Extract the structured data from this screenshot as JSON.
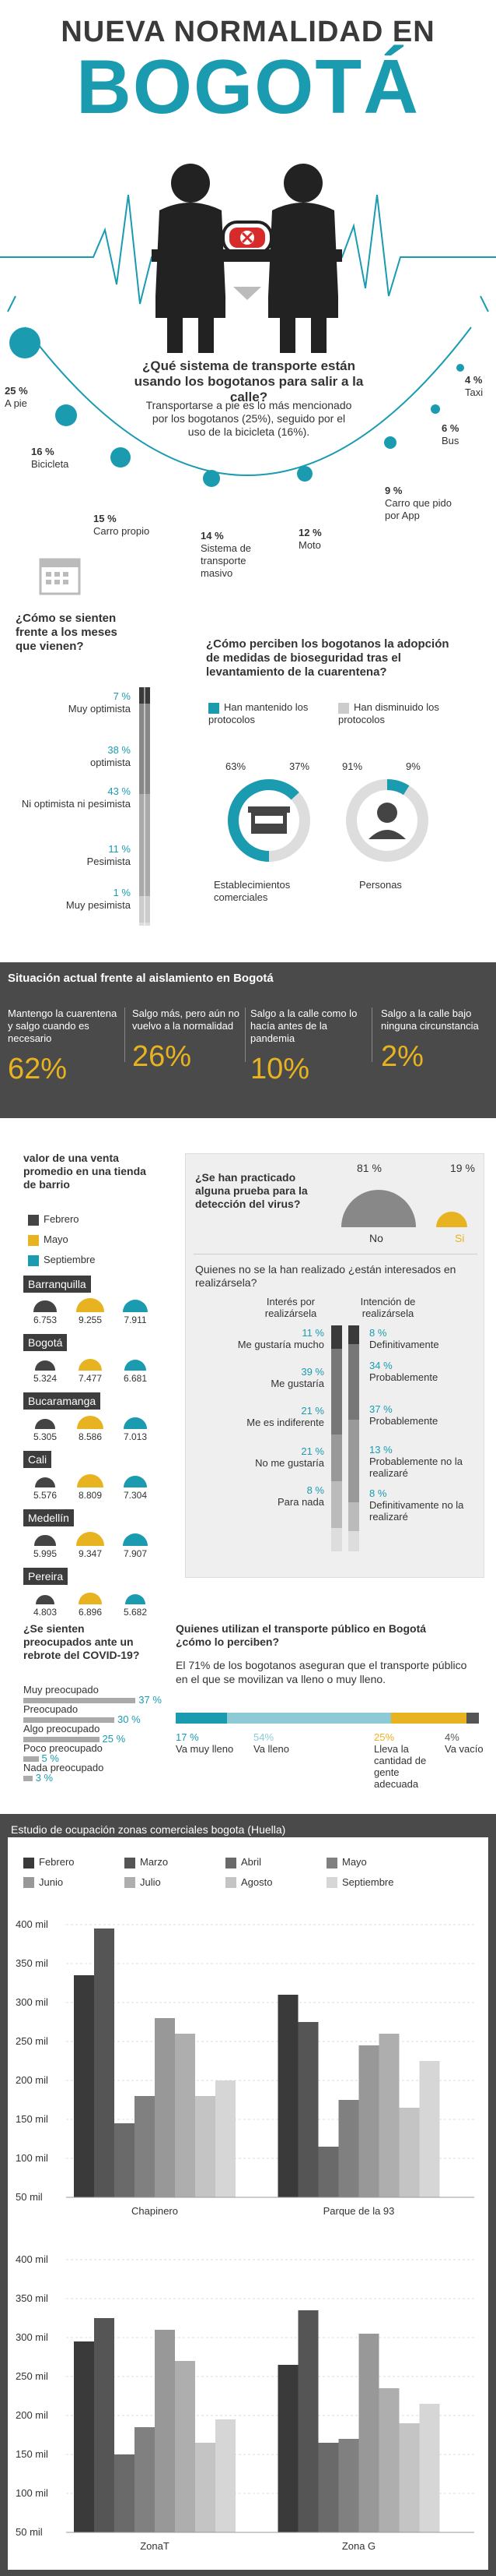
{
  "header": {
    "line1": "NUEVA NORMALIDAD EN",
    "line2": "BOGOTÁ"
  },
  "transport": {
    "question": "¿Qué sistema de transporte están usando los bogotanos para salir a la calle?",
    "text": "Transportarse a pie es lo más mencionado por los bogotanos (25%), seguido por el uso de la bicicleta (16%).",
    "items": [
      {
        "pct": "25 %",
        "label": "A pie"
      },
      {
        "pct": "16 %",
        "label": "Bicicleta"
      },
      {
        "pct": "15 %",
        "label": "Carro propio"
      },
      {
        "pct": "14 %",
        "label": "Sistema de transporte masivo"
      },
      {
        "pct": "12 %",
        "label": "Moto"
      },
      {
        "pct": "9 %",
        "label": "Carro que pido por App"
      },
      {
        "pct": "6 %",
        "label": "Bus"
      },
      {
        "pct": "4 %",
        "label": "Taxi"
      }
    ]
  },
  "feel": {
    "title": "¿Cómo se sienten frente a los meses que vienen?",
    "items": [
      {
        "pct": "7 %",
        "label": "Muy optimista"
      },
      {
        "pct": "38 %",
        "label": "optimista"
      },
      {
        "pct": "43 %",
        "label": "Ni optimista ni pesimista"
      },
      {
        "pct": "11 %",
        "label": "Pesimista"
      },
      {
        "pct": "1 %",
        "label": "Muy pesimista"
      }
    ]
  },
  "bio": {
    "title": "¿Cómo perciben los bogotanos la adopción de medidas de bioseguridad tras el levantamiento de la cuarentena?",
    "legend_kept": "Han mantenido los protocolos",
    "legend_dropped": "Han disminuido los protocolos",
    "estab": {
      "a": "63%",
      "b": "37%",
      "label": "Establecimientos comerciales"
    },
    "people": {
      "a": "91%",
      "b": "9%",
      "label": "Personas"
    }
  },
  "situation": {
    "title": "Situación actual frente al aislamiento en Bogotá",
    "items": [
      {
        "text": "Mantengo la cuarentena y salgo cuando es necesario",
        "pct": "62%"
      },
      {
        "text": "Salgo más, pero aún no vuelvo a la normalidad",
        "pct": "26%"
      },
      {
        "text": "Salgo a la calle como lo hacía antes de la pandemia",
        "pct": "10%"
      },
      {
        "text": "Salgo a la calle bajo ninguna circunstancia",
        "pct": "2%"
      }
    ]
  },
  "sales": {
    "title": "valor de una venta promedio en una tienda de barrio",
    "legend": [
      "Febrero",
      "Mayo",
      "Septiembre"
    ],
    "cities": [
      {
        "name": "Barranquilla",
        "v": [
          "6.753",
          "9.255",
          "7.911"
        ]
      },
      {
        "name": "Bogotá",
        "v": [
          "5.324",
          "7.477",
          "6.681"
        ]
      },
      {
        "name": "Bucaramanga",
        "v": [
          "5.305",
          "8.586",
          "7.013"
        ]
      },
      {
        "name": "Cali",
        "v": [
          "5.576",
          "8.809",
          "7.304"
        ]
      },
      {
        "name": "Medellín",
        "v": [
          "5.995",
          "9.347",
          "7.907"
        ]
      },
      {
        "name": "Pereira",
        "v": [
          "4.803",
          "6.896",
          "5.682"
        ]
      }
    ]
  },
  "test": {
    "title": "¿Se han practicado alguna prueba para la detección del virus?",
    "no_pct": "81 %",
    "no": "No",
    "si_pct": "19 %",
    "si": "Si",
    "sub": "Quienes no se la han realizado ¿están interesados en realizársela?",
    "col1": "Interés por realizársela",
    "col2": "Intención de realizársela",
    "interest": [
      {
        "pct": "11 %",
        "label": "Me gustaría mucho"
      },
      {
        "pct": "39 %",
        "label": "Me gustaría"
      },
      {
        "pct": "21 %",
        "label": "Me es indiferente"
      },
      {
        "pct": "21 %",
        "label": "No me gustaría"
      },
      {
        "pct": "8 %",
        "label": "Para nada"
      }
    ],
    "intent": [
      {
        "pct": "8 %",
        "label": "Definitivamente"
      },
      {
        "pct": "34 %",
        "label": "Probablemente"
      },
      {
        "pct": "37 %",
        "label": "Probablemente"
      },
      {
        "pct": "13 %",
        "label": "Probablemente no la realizaré"
      },
      {
        "pct": "8 %",
        "label": "Definitivamente no la realizaré"
      }
    ]
  },
  "worry": {
    "title": "¿Se sienten preocupados ante un rebrote del COVID-19?",
    "items": [
      {
        "label": "Muy preocupado",
        "pct": "37 %",
        "v": 37
      },
      {
        "label": "Preocupado",
        "pct": "30 %",
        "v": 30
      },
      {
        "label": "Algo preocupado",
        "pct": "25 %",
        "v": 25
      },
      {
        "label": "Poco preocupado",
        "pct": "5 %",
        "v": 5
      },
      {
        "label": "Nada preocupado",
        "pct": "3 %",
        "v": 3
      }
    ]
  },
  "public": {
    "title": "Quienes utilizan el transporte público en Bogotá ¿cómo lo perciben?",
    "text": "El 71% de los bogotanos aseguran que el transporte público en el que se movilizan va lleno o muy lleno.",
    "items": [
      {
        "pct": "17 %",
        "label": "Va muy lleno",
        "v": 17,
        "color": "#1a9bb0"
      },
      {
        "pct": "54%",
        "label": "Va lleno",
        "v": 54,
        "color": "#8ccbd6"
      },
      {
        "pct": "25%",
        "label": "Lleva la cantidad de gente adecuada",
        "v": 25,
        "color": "#e8b320"
      },
      {
        "pct": "4%",
        "label": "Va vacío",
        "v": 4,
        "color": "#555555"
      }
    ]
  },
  "occupancy": {
    "title": "Estudio de ocupación zonas comerciales bogota (Huella)",
    "legend": [
      "Febrero",
      "Marzo",
      "Abril",
      "Mayo",
      "Junio",
      "Julio",
      "Agosto",
      "Septiembre"
    ],
    "colors": [
      "#3a3a3a",
      "#555555",
      "#6a6a6a",
      "#808080",
      "#989898",
      "#aeaeae",
      "#c4c4c4",
      "#d6d6d6"
    ],
    "yticks": [
      "400 mil",
      "350 mil",
      "300 mil",
      "250 mil",
      "200 mil",
      "150 mil",
      "100 mil",
      "50 mil"
    ]
  },
  "chart_data": [
    {
      "type": "bar",
      "title": "Estudio de ocupación zonas comerciales bogota (Huella)",
      "categories": [
        "Chapinero",
        "Parque de la 93"
      ],
      "series": [
        {
          "name": "Febrero",
          "values": [
            335,
            310
          ]
        },
        {
          "name": "Marzo",
          "values": [
            395,
            275
          ]
        },
        {
          "name": "Abril",
          "values": [
            145,
            115
          ]
        },
        {
          "name": "Mayo",
          "values": [
            180,
            175
          ]
        },
        {
          "name": "Junio",
          "values": [
            280,
            245
          ]
        },
        {
          "name": "Julio",
          "values": [
            260,
            260
          ]
        },
        {
          "name": "Agosto",
          "values": [
            180,
            165
          ]
        },
        {
          "name": "Septiembre",
          "values": [
            200,
            225
          ]
        }
      ],
      "ylim": [
        50,
        400
      ]
    },
    {
      "type": "bar",
      "categories": [
        "ZonaT",
        "Zona G"
      ],
      "series": [
        {
          "name": "Febrero",
          "values": [
            295,
            265
          ]
        },
        {
          "name": "Marzo",
          "values": [
            325,
            335
          ]
        },
        {
          "name": "Abril",
          "values": [
            150,
            165
          ]
        },
        {
          "name": "Mayo",
          "values": [
            185,
            170
          ]
        },
        {
          "name": "Junio",
          "values": [
            310,
            305
          ]
        },
        {
          "name": "Julio",
          "values": [
            270,
            235
          ]
        },
        {
          "name": "Agosto",
          "values": [
            165,
            190
          ]
        },
        {
          "name": "Septiembre",
          "values": [
            195,
            215
          ]
        }
      ],
      "ylim": [
        50,
        400
      ]
    }
  ]
}
